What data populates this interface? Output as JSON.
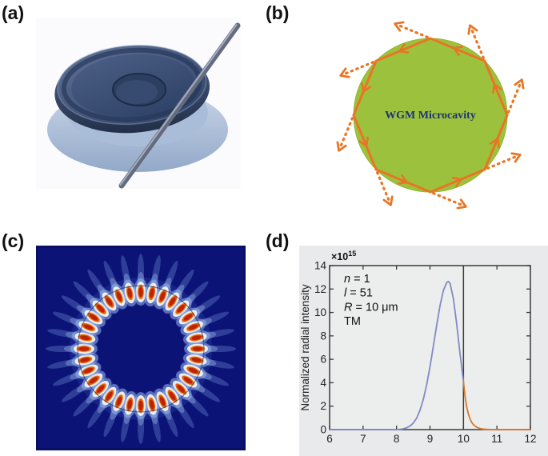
{
  "figure": {
    "background": "#ffffff",
    "panels": {
      "a": {
        "label": "(a)",
        "content": "microtoroid-resonator-with-fiber-taper",
        "colors": {
          "toroid_slate": "#32456a",
          "pedestal_blue": "#a9bdd8",
          "fiber_gray": "#646b7d"
        }
      },
      "b": {
        "label": "(b)",
        "cavity_label": "WGM Microcavity",
        "geometry": {
          "polygon_sides": 8,
          "circulation": "counterclockwise",
          "escape_arrows": 8
        },
        "colors": {
          "cavity_green": "#9cc23d",
          "cavity_green_dark": "#8fb733",
          "ray_orange": "#e87525",
          "label_navy": "#1d3177"
        }
      },
      "c": {
        "label": "(c)",
        "mode_pattern": {
          "azimuthal_lobes": 32,
          "background_navy": "#0c1377",
          "border_navy": "#0a0f63",
          "lobe_core_red": "#bb2404",
          "lobe_orange": "#e55d14",
          "lobe_yellow": "#f6de8d",
          "lobe_white": "#f4f8ff",
          "glow_blue": "#9db9ee",
          "ray_blue": "#7fa3e8",
          "halo_blue": "#3d5ecb",
          "boundary_stroke": "#0b2450"
        }
      },
      "d": {
        "label": "(d)"
      }
    }
  },
  "chart_data": {
    "type": "line",
    "panel": "d",
    "title": "",
    "xlabel": "",
    "ylabel": "Normalized radial intensity",
    "scale_prefix": "×10",
    "scale_exponent": "15",
    "xlim": [
      6,
      12
    ],
    "ylim": [
      0,
      14
    ],
    "xticks": [
      6,
      7,
      8,
      9,
      10,
      11,
      12
    ],
    "yticks": [
      0,
      2,
      4,
      6,
      8,
      10,
      12,
      14
    ],
    "grid": false,
    "legend": "none",
    "boundary_line_x": 10,
    "annotations": [
      {
        "variable": "n",
        "text": " = 1"
      },
      {
        "variable": "l",
        "text": " = 51"
      },
      {
        "variable": "R",
        "text": " = 10 μm"
      },
      {
        "variable": "",
        "text": "TM"
      }
    ],
    "colors": {
      "inside_curve": "#8289c4",
      "outside_curve": "#d9782b",
      "axis": "#3a3a3a",
      "panel_bg": "#e9eaeb"
    },
    "series": [
      {
        "name": "inside-cavity",
        "color": "#8289c4",
        "points": [
          [
            6,
            0
          ],
          [
            6.5,
            0
          ],
          [
            7,
            0
          ],
          [
            7.5,
            0
          ],
          [
            7.8,
            0.01
          ],
          [
            8,
            0.01
          ],
          [
            8.1,
            0.03
          ],
          [
            8.2,
            0.07
          ],
          [
            8.3,
            0.15
          ],
          [
            8.4,
            0.3
          ],
          [
            8.5,
            0.56
          ],
          [
            8.6,
            0.98
          ],
          [
            8.7,
            1.63
          ],
          [
            8.8,
            2.57
          ],
          [
            8.9,
            3.82
          ],
          [
            9,
            5.37
          ],
          [
            9.1,
            7.13
          ],
          [
            9.2,
            8.94
          ],
          [
            9.3,
            10.6
          ],
          [
            9.4,
            11.87
          ],
          [
            9.5,
            12.56
          ],
          [
            9.55,
            12.65
          ],
          [
            9.6,
            12.48
          ],
          [
            9.7,
            11.16
          ],
          [
            9.8,
            8.94
          ],
          [
            9.9,
            6.4
          ],
          [
            10,
            4.11
          ]
        ]
      },
      {
        "name": "evanescent-outside",
        "color": "#d9782b",
        "points": [
          [
            10,
            4.11
          ],
          [
            10.05,
            2.8
          ],
          [
            10.1,
            1.9
          ],
          [
            10.15,
            1.3
          ],
          [
            10.2,
            0.88
          ],
          [
            10.25,
            0.6
          ],
          [
            10.3,
            0.41
          ],
          [
            10.4,
            0.19
          ],
          [
            10.5,
            0.09
          ],
          [
            10.6,
            0.04
          ],
          [
            10.7,
            0.02
          ],
          [
            10.8,
            0.01
          ],
          [
            11,
            0
          ],
          [
            11.5,
            0
          ],
          [
            12,
            0
          ]
        ]
      }
    ]
  }
}
